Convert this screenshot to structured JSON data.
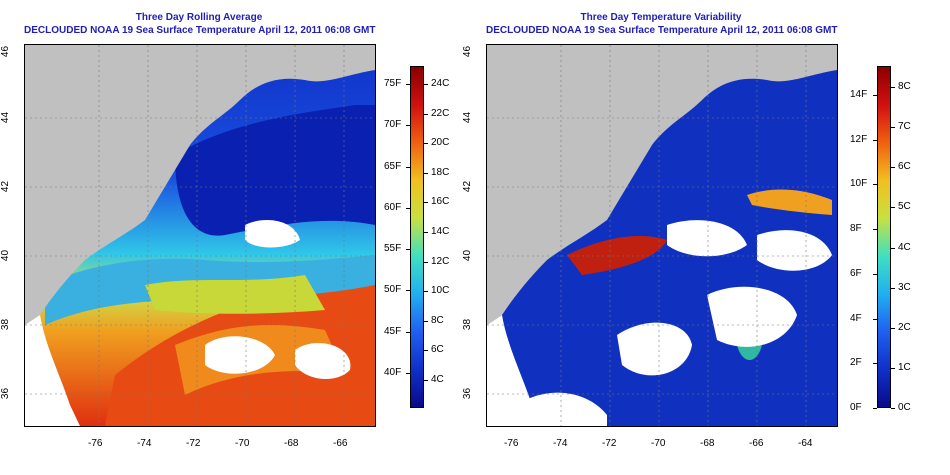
{
  "panels": [
    {
      "title": "Three Day Rolling Average",
      "subtitle": "DECLOUDED NOAA 19 Sea Surface Temperature April 12, 2011 06:08 GMT",
      "colorbar_f": [
        "75F",
        "70F",
        "65F",
        "60F",
        "55F",
        "50F",
        "45F",
        "40F"
      ],
      "colorbar_c": [
        "24C",
        "22C",
        "20C",
        "18C",
        "16C",
        "14C",
        "12C",
        "10C",
        "8C",
        "6C",
        "4C"
      ]
    },
    {
      "title": "Three Day Temperature Variability",
      "subtitle": "DECLOUDED NOAA 19 Sea Surface Temperature April 12, 2011 06:08 GMT",
      "colorbar_f": [
        "14F",
        "12F",
        "10F",
        "8F",
        "6F",
        "4F",
        "2F",
        "0F"
      ],
      "colorbar_c": [
        "8C",
        "7C",
        "6C",
        "5C",
        "4C",
        "3C",
        "2C",
        "1C",
        "0C"
      ]
    }
  ],
  "axes": {
    "lon_labels": [
      "-76",
      "-74",
      "-72",
      "-70",
      "-68",
      "-66",
      "-64"
    ],
    "lat_labels": [
      "46",
      "44",
      "42",
      "40",
      "38",
      "36"
    ]
  },
  "colors": {
    "title": "#1f1fb4",
    "land": "#c0c0c0",
    "cloud": "#ffffff"
  }
}
